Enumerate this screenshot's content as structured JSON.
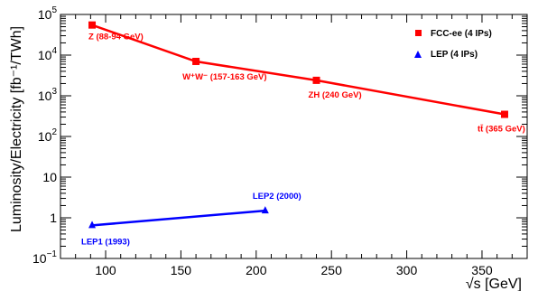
{
  "chart_data": {
    "type": "line",
    "title": "",
    "xlabel": "√s [GeV]",
    "ylabel": "Luminosity/Electricity [fb⁻¹/TWh]",
    "xlim": [
      70,
      380
    ],
    "ylim": [
      0.1,
      100000
    ],
    "yscale": "log",
    "grid": false,
    "legend_position": "top-right",
    "x_ticks": [
      100,
      150,
      200,
      250,
      300,
      350
    ],
    "y_ticks": [
      {
        "value": 0.1,
        "base": "10",
        "exp": "−1"
      },
      {
        "value": 1,
        "base": "1",
        "exp": ""
      },
      {
        "value": 10,
        "base": "10",
        "exp": ""
      },
      {
        "value": 100,
        "base": "10",
        "exp": "2"
      },
      {
        "value": 1000,
        "base": "10",
        "exp": "3"
      },
      {
        "value": 10000,
        "base": "10",
        "exp": "4"
      },
      {
        "value": 100000,
        "base": "10",
        "exp": "5"
      }
    ],
    "series": [
      {
        "name": "FCC-ee (4 IPs)",
        "color": "#ff0000",
        "marker": "square",
        "x": [
          91,
          160,
          240,
          365
        ],
        "y": [
          55000,
          7000,
          2400,
          350
        ],
        "point_labels": [
          "Z (88-94 GeV)",
          "W⁺W⁻ (157-163 GeV)",
          "ZH (240 GeV)",
          "tt̄ (365 GeV)"
        ]
      },
      {
        "name": "LEP (4 IPs)",
        "color": "#0000ff",
        "marker": "triangle",
        "x": [
          91,
          206
        ],
        "y": [
          0.65,
          1.5
        ],
        "point_labels": [
          "LEP1 (1993)",
          "LEP2 (2000)"
        ]
      }
    ]
  }
}
